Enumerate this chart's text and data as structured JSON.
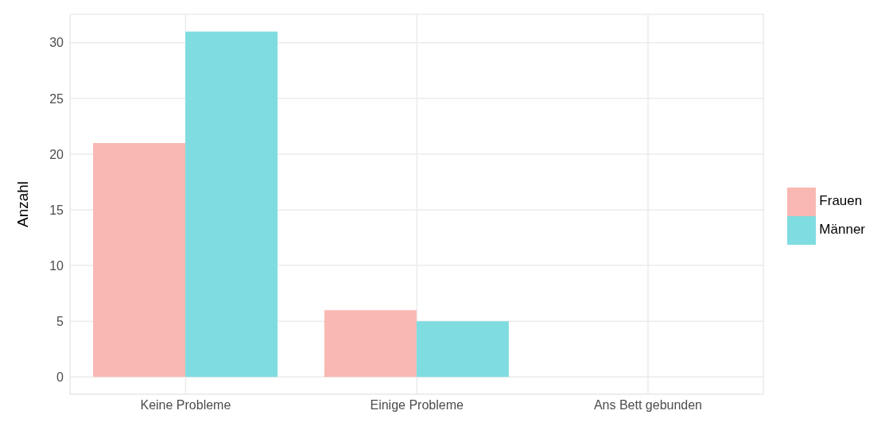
{
  "chart_data": {
    "type": "bar",
    "ylabel": "Anzahl",
    "categories": [
      "Keine Probleme",
      "Einige Probleme",
      "Ans Bett gebunden"
    ],
    "series": [
      {
        "name": "Frauen",
        "color": "#f9b8b3",
        "values": [
          21,
          6,
          0
        ]
      },
      {
        "name": "Männer",
        "color": "#7fdce0",
        "values": [
          31,
          5,
          0
        ]
      }
    ],
    "ylim": [
      -1.55,
      32.55
    ],
    "yticks": [
      0,
      5,
      10,
      15,
      20,
      25,
      30
    ],
    "grid": true,
    "legend": "right"
  }
}
